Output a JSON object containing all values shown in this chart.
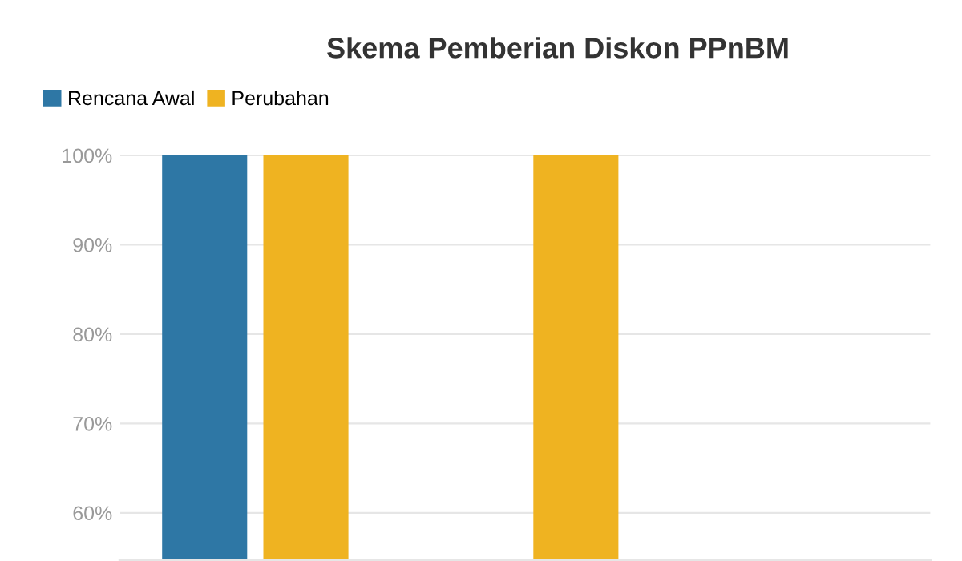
{
  "chart_data": {
    "type": "bar",
    "title": "Skema Pemberian Diskon PPnBM",
    "categories": [
      null,
      null,
      null
    ],
    "series": [
      {
        "name": "Rencana Awal",
        "color": "#2e77a5",
        "values": [
          100,
          null,
          null
        ]
      },
      {
        "name": "Perubahan",
        "color": "#efb321",
        "values": [
          100,
          100,
          null
        ]
      }
    ],
    "ylim": [
      54.6,
      100
    ],
    "yticks": [
      {
        "value": 60,
        "label": "60%"
      },
      {
        "value": 70,
        "label": "70%"
      },
      {
        "value": 80,
        "label": "80%"
      },
      {
        "value": 90,
        "label": "90%"
      },
      {
        "value": 100,
        "label": "100%"
      }
    ],
    "grid": "y",
    "legend": "top left"
  }
}
